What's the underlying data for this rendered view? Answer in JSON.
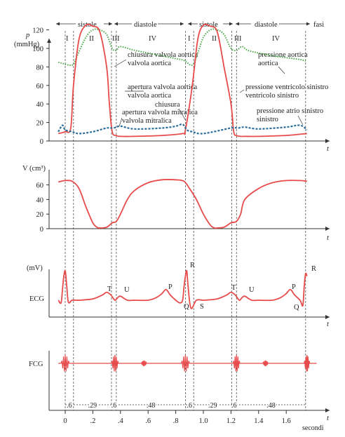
{
  "chart_data": [
    {
      "panel": "pressure",
      "type": "line",
      "ylabel": "p",
      "yunit": "(mmHg)",
      "xlabel": "t",
      "yticks": [
        0,
        20,
        40,
        60,
        80,
        100,
        120
      ],
      "ylim": [
        0,
        130
      ],
      "phase_bar": [
        {
          "label": "sistole"
        },
        {
          "label": "diastole"
        },
        {
          "label": "sistole"
        },
        {
          "label": "diastole"
        },
        {
          "label": "fasi"
        }
      ],
      "phase_numerals": [
        "I",
        "II",
        "III",
        "IV",
        "I",
        "II",
        "III",
        "IV"
      ],
      "series": [
        {
          "name": "pressione aortica",
          "style": "green-dotted",
          "x": [
            -0.05,
            0.05,
            0.08,
            0.15,
            0.2,
            0.25,
            0.3,
            0.34,
            0.37,
            0.4,
            0.5,
            0.6,
            0.7,
            0.8,
            0.86,
            0.92,
            0.96,
            1.0,
            1.05,
            1.1,
            1.15,
            1.2,
            1.24,
            1.28,
            1.32,
            1.4,
            1.5,
            1.6,
            1.7,
            1.75
          ],
          "y": [
            85,
            82,
            90,
            112,
            120,
            120,
            115,
            100,
            98,
            102,
            98,
            95,
            92,
            89,
            87,
            82,
            95,
            112,
            120,
            120,
            115,
            100,
            98,
            102,
            98,
            95,
            92,
            90,
            88,
            86
          ]
        },
        {
          "name": "pressione ventricolo sinistro",
          "style": "red-solid",
          "x": [
            -0.05,
            0.0,
            0.04,
            0.06,
            0.1,
            0.15,
            0.2,
            0.25,
            0.3,
            0.32,
            0.34,
            0.37,
            0.4,
            0.5,
            0.7,
            0.85,
            0.87,
            0.92,
            0.96,
            1.0,
            1.05,
            1.1,
            1.15,
            1.2,
            1.22,
            1.24,
            1.27,
            1.3,
            1.4,
            1.6,
            1.75
          ],
          "y": [
            8,
            10,
            14,
            60,
            110,
            125,
            124,
            118,
            80,
            40,
            10,
            6,
            5,
            5,
            6,
            8,
            12,
            60,
            110,
            125,
            124,
            118,
            80,
            40,
            10,
            6,
            5,
            5,
            5,
            6,
            8
          ]
        },
        {
          "name": "pressione atrio sinistro",
          "style": "blue-dashed",
          "x": [
            -0.05,
            -0.02,
            0.0,
            0.05,
            0.1,
            0.2,
            0.3,
            0.35,
            0.4,
            0.5,
            0.7,
            0.8,
            0.85,
            0.88,
            0.92,
            1.0,
            1.2,
            1.25,
            1.3,
            1.4,
            1.6,
            1.7,
            1.75
          ],
          "y": [
            10,
            17,
            12,
            10,
            8,
            10,
            14,
            14,
            16,
            13,
            14,
            16,
            18,
            12,
            10,
            8,
            14,
            14,
            15,
            13,
            15,
            17,
            12
          ]
        }
      ],
      "annotations": [
        {
          "text": "chiusura valvola aortica"
        },
        {
          "text": "apertura valvola aortica"
        },
        {
          "text": "chiusura"
        },
        {
          "text": "apertura valvola mitralica"
        },
        {
          "text": "pressione aortica"
        },
        {
          "text": "pressione ventricolo sinistro"
        },
        {
          "text": "pressione atrio sinistro"
        }
      ]
    },
    {
      "panel": "volume",
      "type": "line",
      "ylabel": "V (cm³)",
      "xlabel": "t",
      "yticks": [
        0,
        20,
        40,
        60
      ],
      "ylim": [
        0,
        70
      ],
      "series": [
        {
          "name": "V",
          "x": [
            -0.05,
            0.0,
            0.05,
            0.1,
            0.15,
            0.2,
            0.23,
            0.25,
            0.3,
            0.34,
            0.37,
            0.4,
            0.45,
            0.5,
            0.6,
            0.7,
            0.8,
            0.86,
            0.9,
            0.95,
            1.0,
            1.05,
            1.08,
            1.1,
            1.15,
            1.2,
            1.24,
            1.27,
            1.3,
            1.4,
            1.5,
            1.6,
            1.7,
            1.75
          ],
          "y": [
            64,
            66,
            65,
            55,
            30,
            8,
            2,
            1,
            2,
            8,
            10,
            20,
            40,
            52,
            63,
            67,
            67,
            65,
            55,
            40,
            20,
            5,
            1,
            1,
            2,
            8,
            10,
            20,
            40,
            55,
            63,
            66,
            66,
            65
          ]
        }
      ]
    },
    {
      "panel": "ECG",
      "type": "line",
      "ylabel": "(mV)",
      "name_label": "ECG",
      "xlabel": "t",
      "wave_labels": [
        "R",
        "T",
        "U",
        "P",
        "Q",
        "S",
        "T",
        "U",
        "P",
        "Q",
        "R"
      ],
      "series": [
        {
          "name": "ECG",
          "x": [
            -0.05,
            -0.03,
            -0.02,
            -0.01,
            0.0,
            0.01,
            0.02,
            0.03,
            0.05,
            0.1,
            0.2,
            0.27,
            0.3,
            0.33,
            0.36,
            0.38,
            0.4,
            0.45,
            0.5,
            0.6,
            0.66,
            0.7,
            0.73,
            0.76,
            0.8,
            0.83,
            0.85,
            0.86,
            0.87,
            0.88,
            0.89,
            0.91,
            0.95,
            1.0,
            1.1,
            1.17,
            1.2,
            1.23,
            1.26,
            1.28,
            1.3,
            1.35,
            1.4,
            1.5,
            1.56,
            1.6,
            1.63,
            1.66,
            1.7,
            1.72,
            1.73,
            1.74,
            1.75
          ],
          "y": [
            0,
            -0.1,
            0.4,
            0.9,
            1.1,
            0.6,
            0,
            -0.1,
            0,
            0,
            0.05,
            0.2,
            0.3,
            0.2,
            0,
            0.1,
            0.15,
            0,
            0,
            0,
            0.1,
            0.25,
            0.4,
            0.2,
            0,
            -0.1,
            0,
            0.5,
            0.9,
            1.1,
            0.5,
            -0.3,
            0,
            0,
            0.05,
            0.2,
            0.3,
            0.2,
            0,
            0.1,
            0.15,
            0,
            0,
            0,
            0.1,
            0.25,
            0.4,
            0.2,
            0,
            -0.2,
            0.5,
            1.0,
            0.9
          ]
        }
      ]
    },
    {
      "panel": "FCG",
      "type": "line",
      "name_label": "FCG",
      "xlabel": "t",
      "x_unit_label": "secondi",
      "xticks": [
        "0",
        ".2",
        ".4",
        ".6",
        ".8",
        "1.0",
        "1.2",
        "1.4",
        "1.6"
      ],
      "xtick_values": [
        0,
        0.2,
        0.4,
        0.6,
        0.8,
        1.0,
        1.2,
        1.4,
        1.6
      ],
      "intervals": [
        ".6",
        ".29",
        ".6",
        ".48",
        ".6",
        ".29",
        ".6",
        ".48"
      ],
      "sound_bursts": [
        {
          "x": 0.0,
          "width": 0.06,
          "amp": 1.0
        },
        {
          "x": 0.36,
          "width": 0.05,
          "amp": 1.0
        },
        {
          "x": 0.57,
          "width": 0.04,
          "amp": 0.35
        },
        {
          "x": 0.87,
          "width": 0.06,
          "amp": 1.0
        },
        {
          "x": 1.24,
          "width": 0.05,
          "amp": 1.0
        },
        {
          "x": 1.45,
          "width": 0.04,
          "amp": 0.35
        },
        {
          "x": 1.75,
          "width": 0.04,
          "amp": 1.0
        }
      ]
    }
  ],
  "colors": {
    "ventricle": "#e84b4b",
    "aorta": "#4aa84a",
    "atrium": "#2b6e9b",
    "axes": "#333333"
  }
}
